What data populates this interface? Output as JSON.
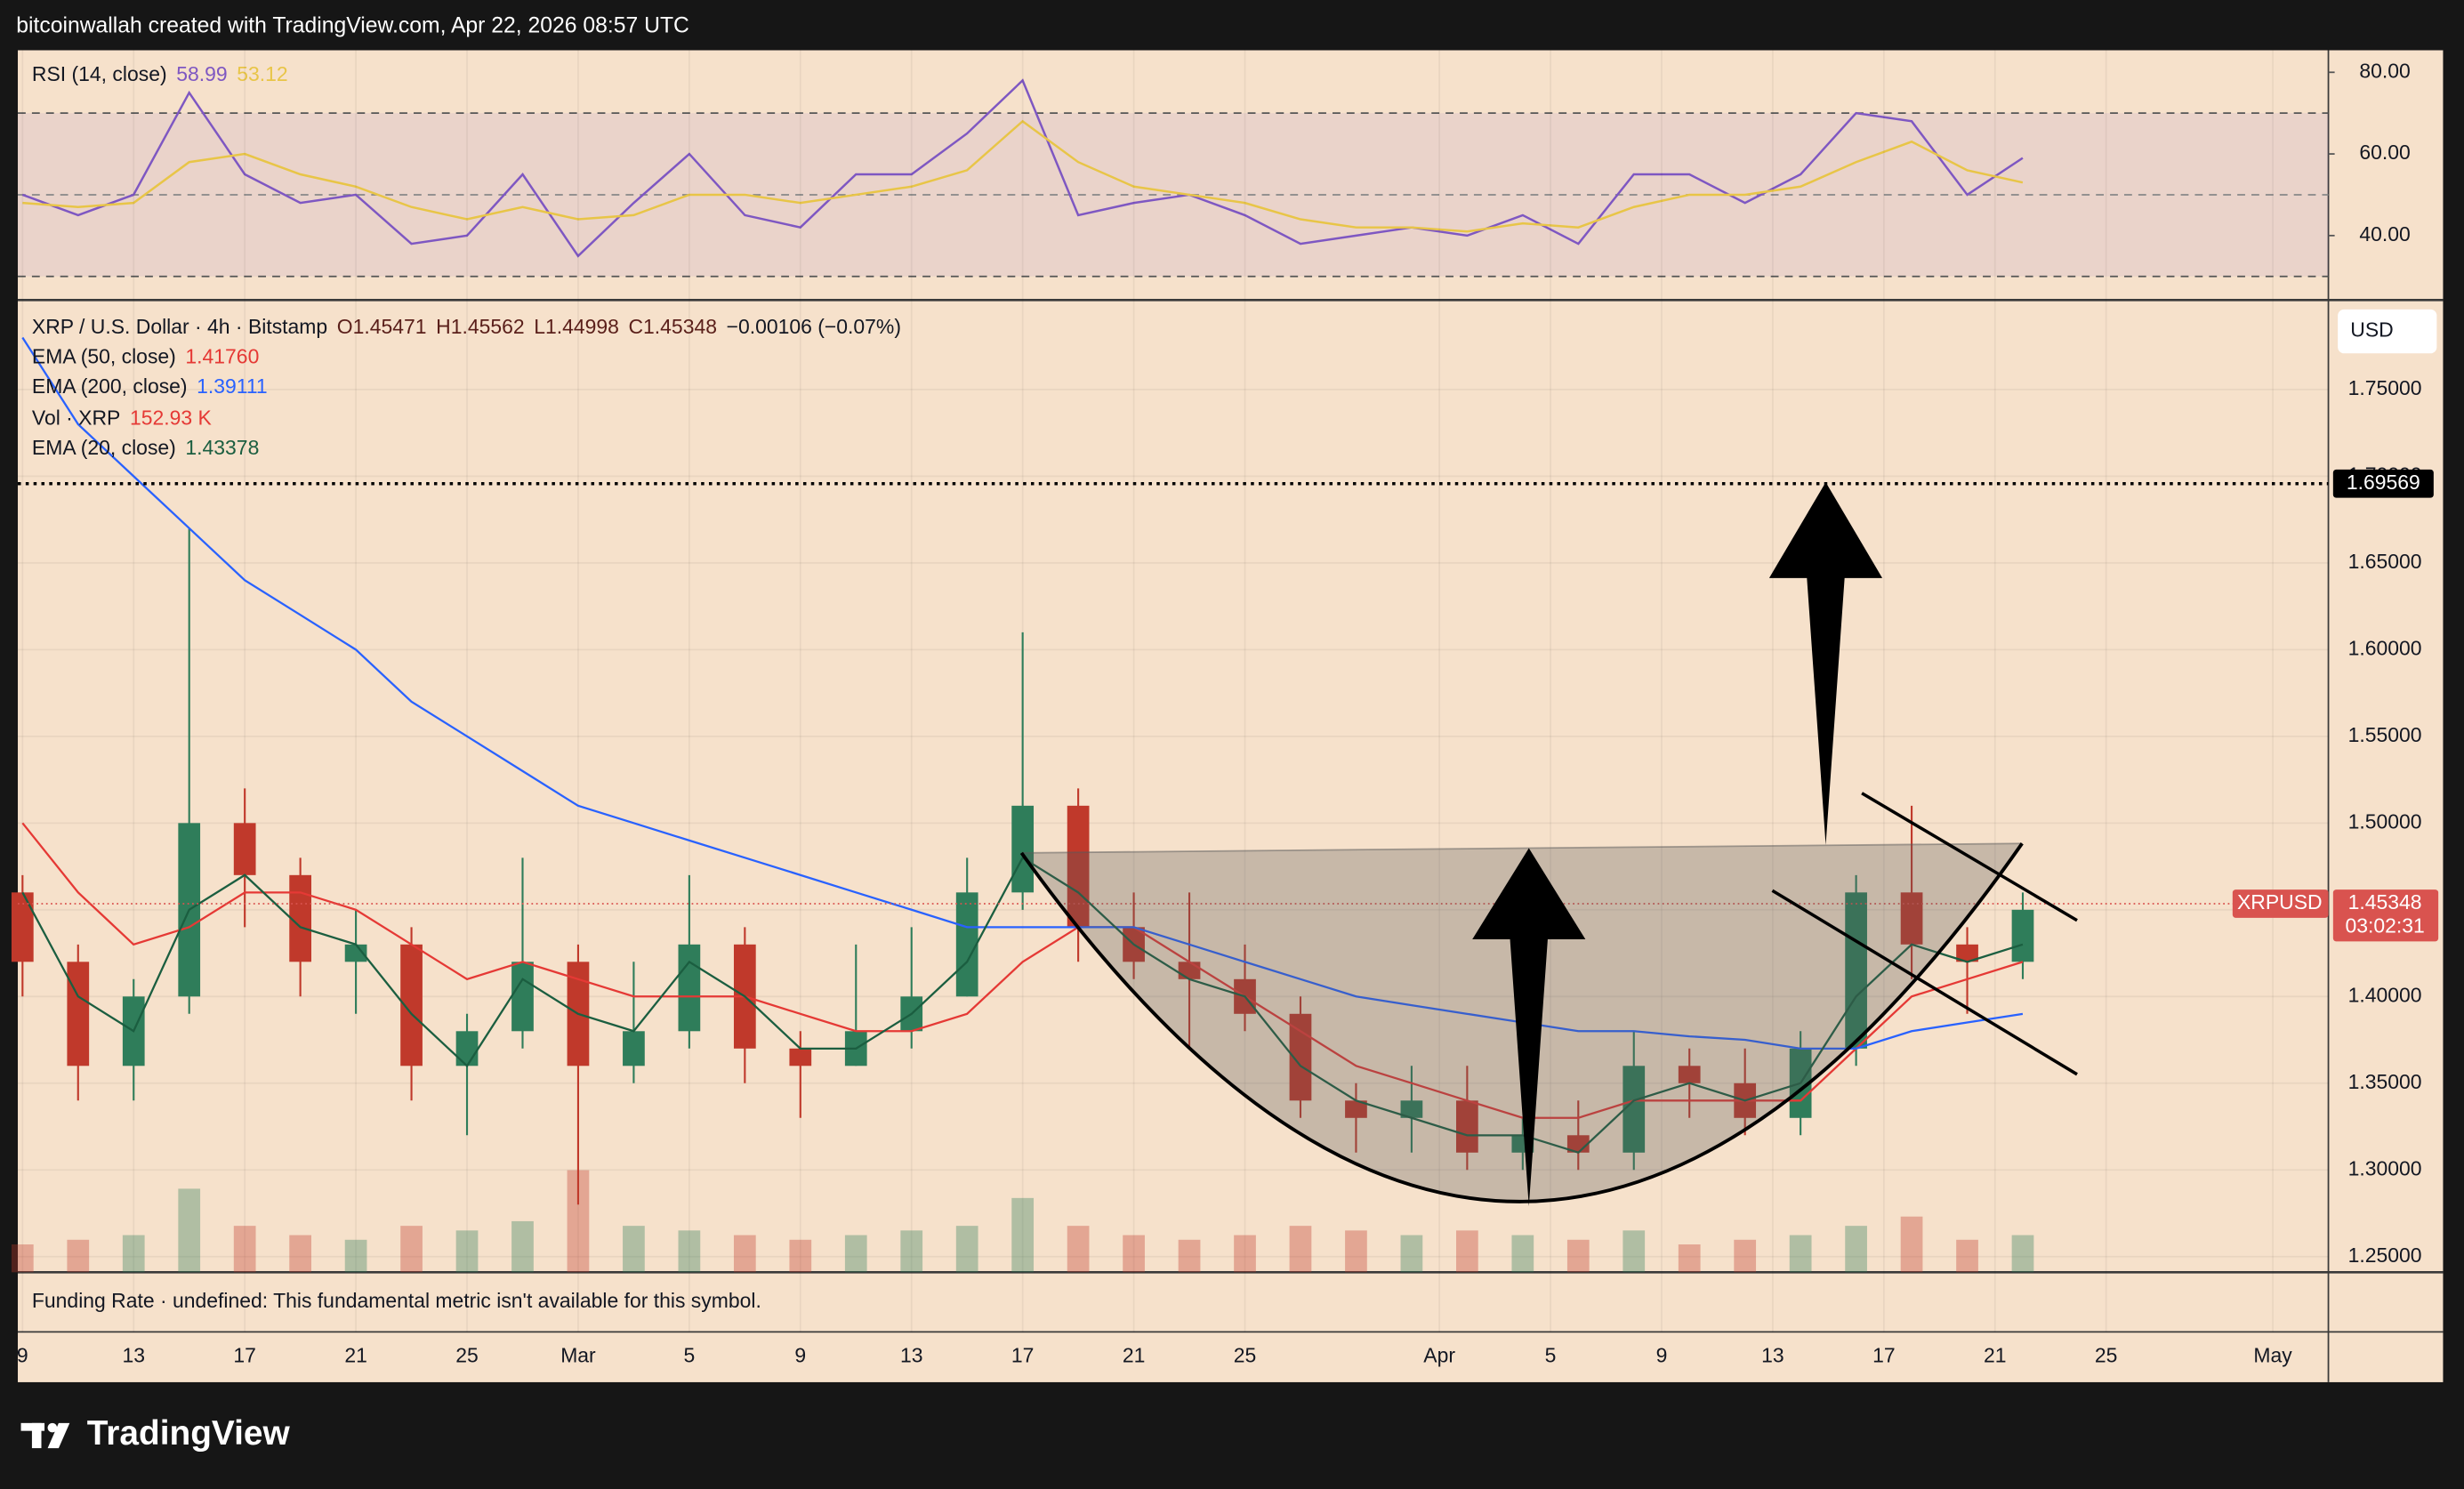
{
  "header": {
    "text": "bitcoinwallah created with TradingView.com, Apr 22, 2026 08:57 UTC"
  },
  "chart_data": [
    {
      "type": "line",
      "title": "RSI (14, close)",
      "x": [
        "2026-02-09",
        "2026-02-11",
        "2026-02-13",
        "2026-02-15",
        "2026-02-17",
        "2026-02-19",
        "2026-02-21",
        "2026-02-23",
        "2026-02-25",
        "2026-02-27",
        "2026-03-01",
        "2026-03-03",
        "2026-03-05",
        "2026-03-07",
        "2026-03-09",
        "2026-03-11",
        "2026-03-13",
        "2026-03-15",
        "2026-03-17",
        "2026-03-19",
        "2026-03-21",
        "2026-03-23",
        "2026-03-25",
        "2026-03-27",
        "2026-03-29",
        "2026-03-31",
        "2026-04-02",
        "2026-04-04",
        "2026-04-06",
        "2026-04-08",
        "2026-04-10",
        "2026-04-12",
        "2026-04-14",
        "2026-04-16",
        "2026-04-18",
        "2026-04-20",
        "2026-04-22"
      ],
      "xlim": [
        "2026-02-09",
        "2026-05-03"
      ],
      "series": [
        {
          "color": "#7e57c2",
          "value_label": "58.99",
          "values": [
            50,
            45,
            50,
            75,
            55,
            48,
            50,
            38,
            40,
            55,
            35,
            48,
            60,
            45,
            42,
            55,
            55,
            65,
            78,
            45,
            48,
            50,
            45,
            38,
            40,
            42,
            40,
            45,
            38,
            55,
            55,
            48,
            55,
            70,
            68,
            50,
            59
          ]
        },
        {
          "color": "#e8c547",
          "value_label": "53.12",
          "values": [
            48,
            47,
            48,
            58,
            60,
            55,
            52,
            47,
            44,
            47,
            44,
            45,
            50,
            50,
            48,
            50,
            52,
            56,
            68,
            58,
            52,
            50,
            48,
            44,
            42,
            42,
            41,
            43,
            42,
            47,
            50,
            50,
            52,
            58,
            63,
            56,
            53
          ]
        }
      ],
      "ylim": [
        24.6,
        85.4
      ],
      "yticks": [
        {
          "value": 80,
          "label": "80.00"
        },
        {
          "value": 60,
          "label": "60.00"
        },
        {
          "value": 40,
          "label": "40.00"
        }
      ],
      "band": [
        30,
        70
      ],
      "midline": 50,
      "band_color": "#7e57c2"
    },
    {
      "type": "candlestick",
      "title": "XRP / U.S. Dollar · 4h · Bitstamp",
      "ohlc_labels": [
        "O1.45471",
        "H1.45562",
        "L1.44998",
        "C1.45348",
        "−0.00106 (−0.07%)"
      ],
      "x": [
        "2026-02-09",
        "2026-02-11",
        "2026-02-13",
        "2026-02-15",
        "2026-02-17",
        "2026-02-19",
        "2026-02-21",
        "2026-02-23",
        "2026-02-25",
        "2026-02-27",
        "2026-03-01",
        "2026-03-03",
        "2026-03-05",
        "2026-03-07",
        "2026-03-09",
        "2026-03-11",
        "2026-03-13",
        "2026-03-15",
        "2026-03-17",
        "2026-03-19",
        "2026-03-21",
        "2026-03-23",
        "2026-03-25",
        "2026-03-27",
        "2026-03-29",
        "2026-03-31",
        "2026-04-02",
        "2026-04-04",
        "2026-04-06",
        "2026-04-08",
        "2026-04-10",
        "2026-04-12",
        "2026-04-14",
        "2026-04-16",
        "2026-04-18",
        "2026-04-20",
        "2026-04-22"
      ],
      "open": [
        1.46,
        1.42,
        1.36,
        1.4,
        1.5,
        1.47,
        1.42,
        1.43,
        1.36,
        1.38,
        1.42,
        1.36,
        1.38,
        1.43,
        1.37,
        1.36,
        1.38,
        1.4,
        1.46,
        1.51,
        1.44,
        1.42,
        1.41,
        1.39,
        1.34,
        1.33,
        1.34,
        1.31,
        1.32,
        1.31,
        1.36,
        1.35,
        1.33,
        1.37,
        1.46,
        1.43,
        1.42
      ],
      "high": [
        1.47,
        1.43,
        1.41,
        1.67,
        1.52,
        1.48,
        1.45,
        1.44,
        1.39,
        1.48,
        1.43,
        1.42,
        1.47,
        1.44,
        1.38,
        1.43,
        1.44,
        1.48,
        1.61,
        1.52,
        1.46,
        1.46,
        1.43,
        1.4,
        1.35,
        1.36,
        1.36,
        1.33,
        1.34,
        1.38,
        1.37,
        1.37,
        1.38,
        1.47,
        1.51,
        1.44,
        1.46
      ],
      "low": [
        1.4,
        1.34,
        1.34,
        1.39,
        1.44,
        1.4,
        1.39,
        1.34,
        1.32,
        1.37,
        1.28,
        1.35,
        1.37,
        1.35,
        1.33,
        1.36,
        1.37,
        1.4,
        1.45,
        1.42,
        1.41,
        1.37,
        1.38,
        1.33,
        1.31,
        1.31,
        1.3,
        1.3,
        1.3,
        1.3,
        1.33,
        1.32,
        1.32,
        1.36,
        1.41,
        1.39,
        1.41
      ],
      "close": [
        1.42,
        1.36,
        1.4,
        1.5,
        1.47,
        1.42,
        1.43,
        1.36,
        1.38,
        1.42,
        1.36,
        1.38,
        1.43,
        1.37,
        1.36,
        1.38,
        1.4,
        1.46,
        1.51,
        1.44,
        1.42,
        1.41,
        1.39,
        1.34,
        1.33,
        1.34,
        1.31,
        1.32,
        1.31,
        1.36,
        1.35,
        1.33,
        1.37,
        1.46,
        1.43,
        1.42,
        1.45
      ],
      "up_color": "#2f7d5a",
      "down_color": "#c0392b",
      "series": [
        {
          "name": "EMA (50, close)",
          "value_label": "1.41760",
          "color": "#e53935",
          "values": [
            1.5,
            1.46,
            1.43,
            1.44,
            1.46,
            1.46,
            1.45,
            1.43,
            1.41,
            1.42,
            1.41,
            1.4,
            1.4,
            1.4,
            1.39,
            1.38,
            1.38,
            1.39,
            1.42,
            1.44,
            1.44,
            1.42,
            1.4,
            1.38,
            1.36,
            1.35,
            1.34,
            1.33,
            1.33,
            1.34,
            1.34,
            1.34,
            1.34,
            1.37,
            1.4,
            1.41,
            1.42
          ]
        },
        {
          "name": "EMA (200, close)",
          "value_label": "1.39111",
          "color": "#2962ff",
          "values": [
            1.78,
            1.73,
            1.7,
            1.67,
            1.64,
            1.62,
            1.6,
            1.57,
            1.55,
            1.53,
            1.51,
            1.5,
            1.49,
            1.48,
            1.47,
            1.46,
            1.45,
            1.44,
            1.44,
            1.44,
            1.44,
            1.43,
            1.42,
            1.41,
            1.4,
            1.395,
            1.39,
            1.385,
            1.38,
            1.38,
            1.377,
            1.375,
            1.37,
            1.37,
            1.38,
            1.385,
            1.39
          ]
        },
        {
          "name": "EMA (20, close)",
          "value_label": "1.43378",
          "color": "#1b5e40",
          "values": [
            1.46,
            1.4,
            1.38,
            1.45,
            1.47,
            1.44,
            1.43,
            1.39,
            1.36,
            1.41,
            1.39,
            1.38,
            1.42,
            1.4,
            1.37,
            1.37,
            1.39,
            1.42,
            1.48,
            1.46,
            1.43,
            1.41,
            1.4,
            1.36,
            1.34,
            1.33,
            1.32,
            1.32,
            1.31,
            1.34,
            1.35,
            1.34,
            1.35,
            1.4,
            1.43,
            1.42,
            1.43
          ]
        }
      ],
      "volume": {
        "name": "Vol · XRP",
        "value_label": "152.93 K",
        "color": "#e53935",
        "values": [
          300,
          350,
          400,
          900,
          500,
          400,
          350,
          500,
          450,
          550,
          1100,
          500,
          450,
          400,
          350,
          400,
          450,
          500,
          800,
          500,
          400,
          350,
          400,
          500,
          450,
          400,
          450,
          400,
          350,
          450,
          300,
          350,
          400,
          500,
          600,
          350,
          400
        ]
      },
      "xlim": [
        "2026-02-09",
        "2026-05-03"
      ],
      "xticks": [
        {
          "value": "2026-02-09",
          "label": "9"
        },
        {
          "value": "2026-02-13",
          "label": "13"
        },
        {
          "value": "2026-02-17",
          "label": "17"
        },
        {
          "value": "2026-02-21",
          "label": "21"
        },
        {
          "value": "2026-02-25",
          "label": "25"
        },
        {
          "value": "2026-03-01",
          "label": "Mar"
        },
        {
          "value": "2026-03-05",
          "label": "5"
        },
        {
          "value": "2026-03-09",
          "label": "9"
        },
        {
          "value": "2026-03-13",
          "label": "13"
        },
        {
          "value": "2026-03-17",
          "label": "17"
        },
        {
          "value": "2026-03-21",
          "label": "21"
        },
        {
          "value": "2026-03-25",
          "label": "25"
        },
        {
          "value": "2026-04-01",
          "label": "Apr"
        },
        {
          "value": "2026-04-05",
          "label": "5"
        },
        {
          "value": "2026-04-09",
          "label": "9"
        },
        {
          "value": "2026-04-13",
          "label": "13"
        },
        {
          "value": "2026-04-17",
          "label": "17"
        },
        {
          "value": "2026-04-21",
          "label": "21"
        },
        {
          "value": "2026-04-25",
          "label": "25"
        },
        {
          "value": "2026-05-01",
          "label": "May"
        }
      ],
      "ylim": [
        1.241,
        1.8007
      ],
      "yticks": [
        {
          "value": 1.25,
          "label": "1.25000"
        },
        {
          "value": 1.3,
          "label": "1.30000"
        },
        {
          "value": 1.35,
          "label": "1.35000"
        },
        {
          "value": 1.4,
          "label": "1.40000"
        },
        {
          "value": 1.45,
          "label": "1.45000"
        },
        {
          "value": 1.5,
          "label": "1.50000"
        },
        {
          "value": 1.55,
          "label": "1.55000"
        },
        {
          "value": 1.6,
          "label": "1.60000"
        },
        {
          "value": 1.65,
          "label": "1.65000"
        },
        {
          "value": 1.7,
          "label": "1.70000"
        },
        {
          "value": 1.75,
          "label": "1.75000"
        }
      ],
      "grid": true,
      "currency": "USD",
      "price_lines": [
        {
          "value": 1.69569,
          "label": "1.69569"
        }
      ],
      "last_price": {
        "symbol": "XRPUSD",
        "value": 1.45348,
        "label": "1.45348",
        "countdown": "03:02:31",
        "color": "#d9534f"
      }
    }
  ],
  "funding": {
    "text": "Funding Rate · undefined: This fundamental metric isn't available for this symbol."
  },
  "footer": {
    "brand": "TradingView"
  }
}
